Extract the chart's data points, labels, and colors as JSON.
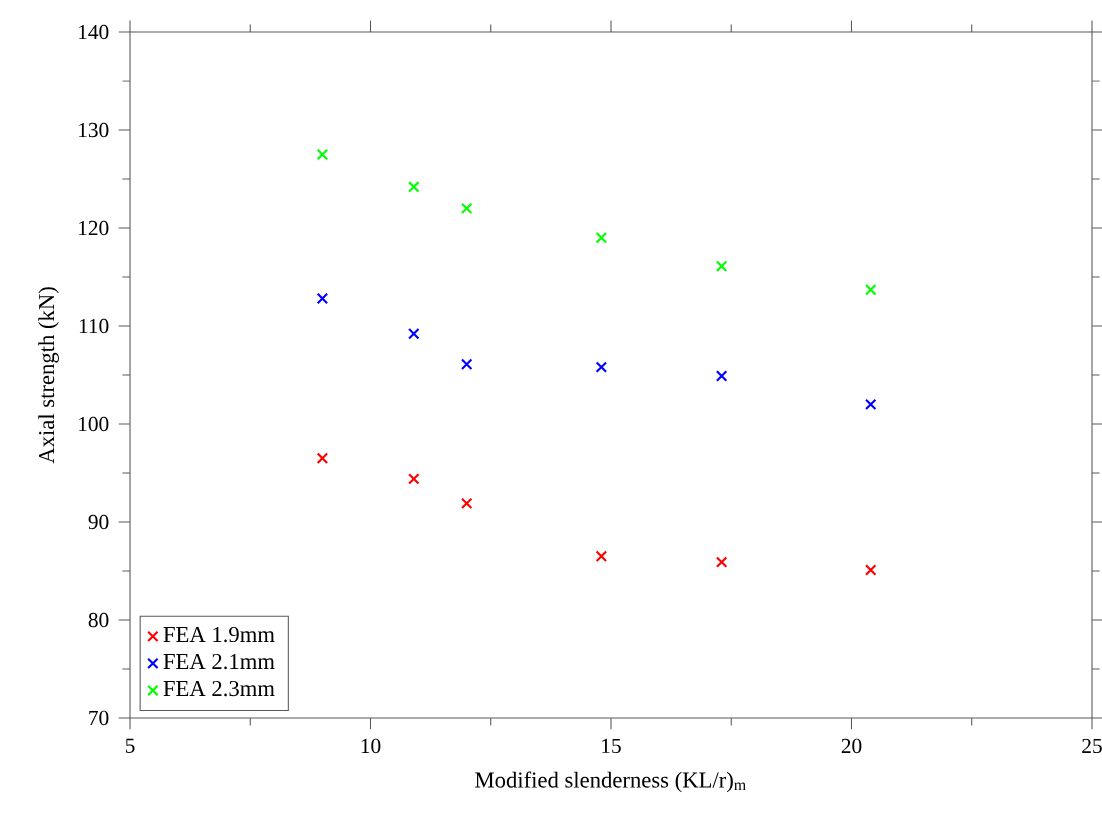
{
  "chart_data": {
    "type": "scatter",
    "xlabel": "Modified slenderness (KL/r)$_{m}$",
    "ylabel": "Axial strength (kN)",
    "xlim": [
      5,
      25
    ],
    "xticks": [
      5,
      10,
      15,
      20,
      25
    ],
    "ylim": [
      70,
      140
    ],
    "yticks": [
      70,
      80,
      90,
      100,
      110,
      120,
      130,
      140
    ],
    "x": [
      9,
      10.9,
      12,
      14.8,
      17.3,
      20.4
    ],
    "marker": "cross",
    "legend": "bottom left",
    "grid": false,
    "series": [
      {
        "name": "FEA 1.9mm",
        "color": "#ff0000",
        "values": [
          96.5,
          94.4,
          91.9,
          86.5,
          85.9,
          85.1
        ]
      },
      {
        "name": "FEA 2.1mm",
        "color": "#0000ff",
        "values": [
          112.8,
          109.2,
          106.1,
          105.8,
          104.9,
          102
        ]
      },
      {
        "name": "FEA 2.3mm",
        "color": "#00ff00",
        "values": [
          127.5,
          124.2,
          122,
          119,
          116.1,
          113.7
        ]
      }
    ]
  }
}
